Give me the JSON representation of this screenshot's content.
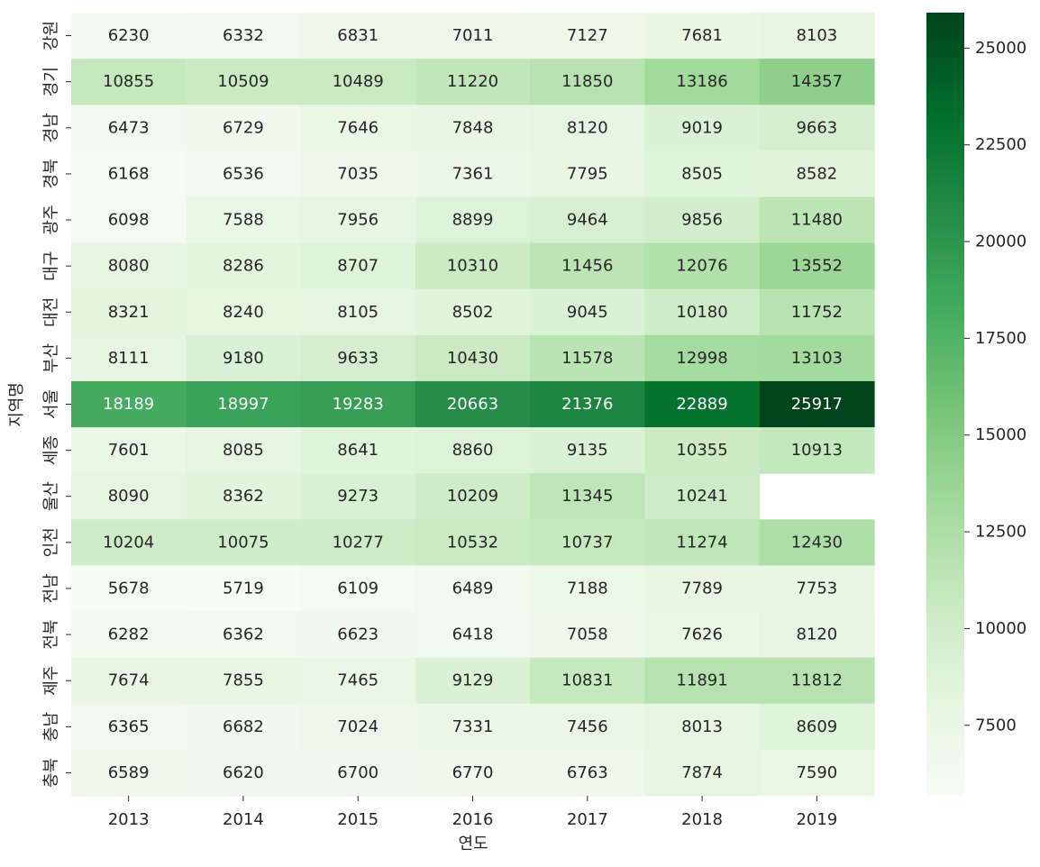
{
  "chart_data": {
    "type": "heatmap",
    "title": "",
    "xlabel": "연도",
    "ylabel": "지역명",
    "x": [
      "2013",
      "2014",
      "2015",
      "2016",
      "2017",
      "2018",
      "2019"
    ],
    "y": [
      "강원",
      "경기",
      "경남",
      "경북",
      "광주",
      "대구",
      "대전",
      "부산",
      "서울",
      "세종",
      "울산",
      "인천",
      "전남",
      "전북",
      "제주",
      "충남",
      "충북"
    ],
    "values": [
      [
        6230,
        6332,
        6831,
        7011,
        7127,
        7681,
        8103
      ],
      [
        10855,
        10509,
        10489,
        11220,
        11850,
        13186,
        14357
      ],
      [
        6473,
        6729,
        7646,
        7848,
        8120,
        9019,
        9663
      ],
      [
        6168,
        6536,
        7035,
        7361,
        7795,
        8505,
        8582
      ],
      [
        6098,
        7588,
        7956,
        8899,
        9464,
        9856,
        11480
      ],
      [
        8080,
        8286,
        8707,
        10310,
        11456,
        12076,
        13552
      ],
      [
        8321,
        8240,
        8105,
        8502,
        9045,
        10180,
        11752
      ],
      [
        8111,
        9180,
        9633,
        10430,
        11578,
        12998,
        13103
      ],
      [
        18189,
        18997,
        19283,
        20663,
        21376,
        22889,
        25917
      ],
      [
        7601,
        8085,
        8641,
        8860,
        9135,
        10355,
        10913
      ],
      [
        8090,
        8362,
        9273,
        10209,
        11345,
        10241,
        null
      ],
      [
        10204,
        10075,
        10277,
        10532,
        10737,
        11274,
        12430
      ],
      [
        5678,
        5719,
        6109,
        6489,
        7188,
        7789,
        7753
      ],
      [
        6282,
        6362,
        6623,
        6418,
        7058,
        7626,
        8120
      ],
      [
        7674,
        7855,
        7465,
        9129,
        10831,
        11891,
        11812
      ],
      [
        6365,
        6682,
        7024,
        7331,
        7456,
        8013,
        8609
      ],
      [
        6589,
        6620,
        6700,
        6770,
        6763,
        7874,
        7590
      ]
    ],
    "colorbar": {
      "min": 5678,
      "max": 25917,
      "ticks": [
        "7500",
        "10000",
        "12500",
        "15000",
        "17500",
        "20000",
        "22500",
        "25000"
      ],
      "colormap": "Greens"
    },
    "grid": false,
    "legend": "colorbar-right"
  }
}
